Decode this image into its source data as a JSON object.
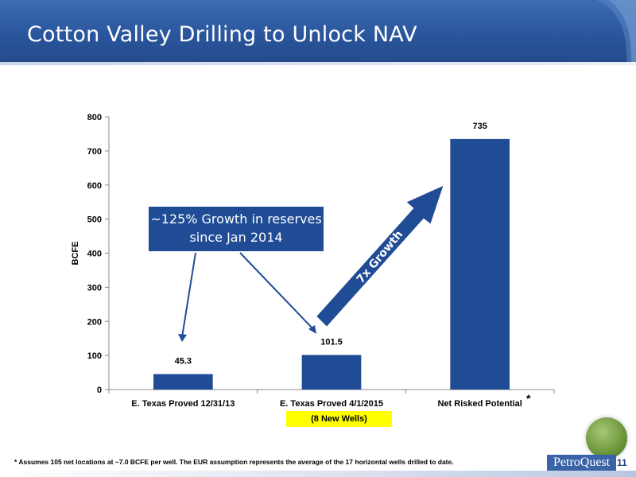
{
  "slide": {
    "title": "Cotton Valley Drilling to Unlock NAV",
    "page_number": "11",
    "brand": "PetroQuest",
    "footnote_marker": "*",
    "footnote": "Assumes 105 net locations at ~7.0 BCFE per well.  The EUR assumption represents the average of the 17 horizontal wells drilled to date."
  },
  "annotations": {
    "growth_callout": "~125% Growth in reserves since Jan 2014",
    "arrow_label": "7x Growth",
    "new_wells": "(8 New Wells)",
    "asterisk": "*"
  },
  "colors": {
    "header": "#2a569d",
    "bar": "#1f4c95",
    "highlight": "#ffff00"
  },
  "chart_data": {
    "type": "bar",
    "categories": [
      "E. Texas Proved 12/31/13",
      "E. Texas Proved 4/1/2015",
      "Net Risked Potential"
    ],
    "values": [
      45.3,
      101.5,
      735
    ],
    "data_labels": [
      "45.3",
      "101.5",
      "735"
    ],
    "ylabel": "BCFE",
    "ylim": [
      0,
      800
    ],
    "yticks": [
      0,
      100,
      200,
      300,
      400,
      500,
      600,
      700,
      800
    ],
    "grid": false,
    "legend": "none"
  }
}
